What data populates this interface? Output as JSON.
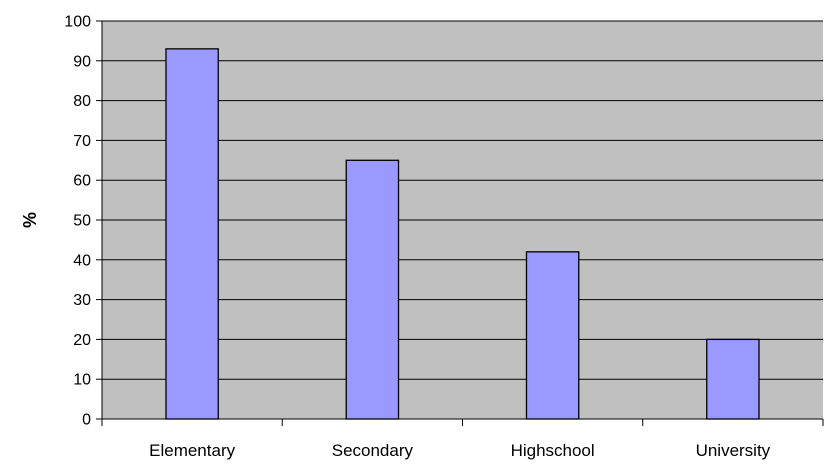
{
  "chart_data": {
    "type": "bar",
    "title": "",
    "xlabel": "",
    "ylabel": "%",
    "categories": [
      "Elementary",
      "Secondary",
      "Highschool",
      "University"
    ],
    "values": [
      93,
      65,
      42,
      20
    ],
    "ylim": [
      0,
      100
    ],
    "yticks": [
      0,
      10,
      20,
      30,
      40,
      50,
      60,
      70,
      80,
      90,
      100
    ],
    "grid": true,
    "legend": "none",
    "colors": {
      "plot_background": "#c0c0c0",
      "bar_fill": "#9999ff",
      "bar_stroke": "#000000",
      "gridline": "#000000"
    }
  }
}
